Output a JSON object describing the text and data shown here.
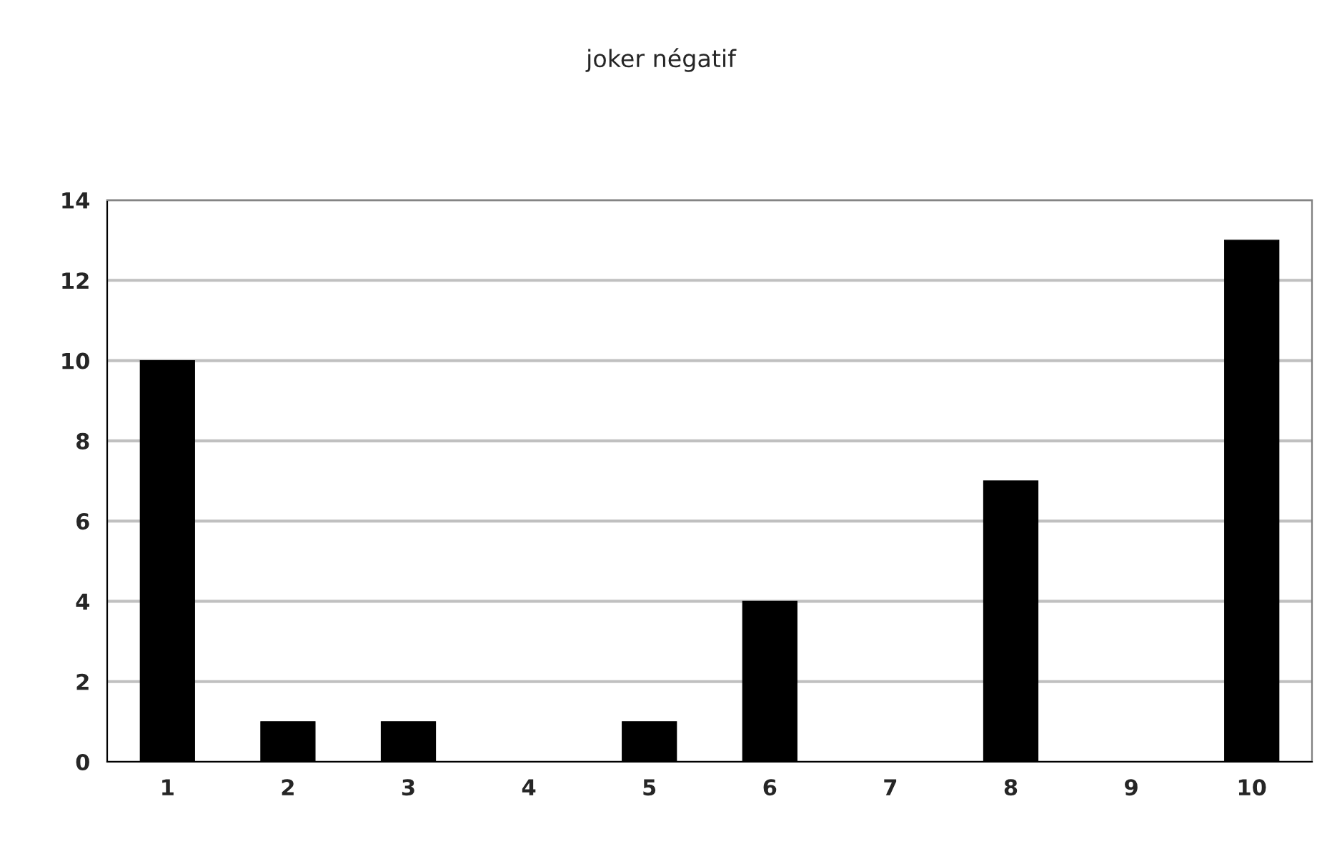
{
  "chart_data": {
    "type": "bar",
    "title": "joker négatif",
    "categories": [
      "1",
      "2",
      "3",
      "4",
      "5",
      "6",
      "7",
      "8",
      "9",
      "10"
    ],
    "values": [
      10,
      1,
      1,
      0,
      1,
      4,
      0,
      7,
      0,
      13
    ],
    "color": "#000000",
    "ylim": [
      0,
      14
    ],
    "yticks": [
      0,
      2,
      4,
      6,
      8,
      10,
      12,
      14
    ],
    "grid": "y"
  }
}
